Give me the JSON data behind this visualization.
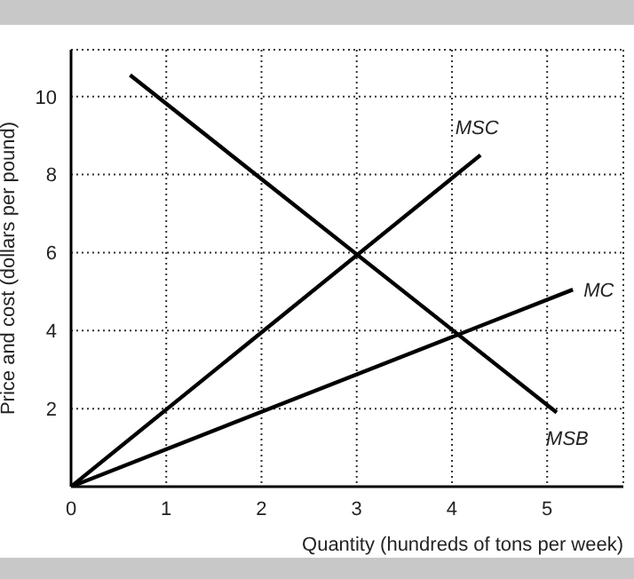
{
  "chart_data": {
    "type": "line",
    "xlabel": "Quantity (hundreds of tons per week)",
    "ylabel": "Price and cost (dollars per pound)",
    "xlim": [
      0,
      5.8
    ],
    "ylim": [
      0,
      11.2
    ],
    "xticks": [
      0,
      1,
      2,
      3,
      4,
      5
    ],
    "yticks": [
      2,
      4,
      6,
      8,
      10
    ],
    "grid": true,
    "marker": "none",
    "line_style": "solid",
    "series": [
      {
        "name": "MSC",
        "color": "#000000",
        "x": [
          0,
          4.3
        ],
        "values": [
          0,
          8.5
        ]
      },
      {
        "name": "MC",
        "color": "#000000",
        "x": [
          0,
          5.27
        ],
        "values": [
          0,
          5.05
        ]
      },
      {
        "name": "MSB",
        "color": "#000000",
        "x": [
          0.62,
          5.1
        ],
        "values": [
          10.55,
          1.9
        ]
      }
    ]
  }
}
